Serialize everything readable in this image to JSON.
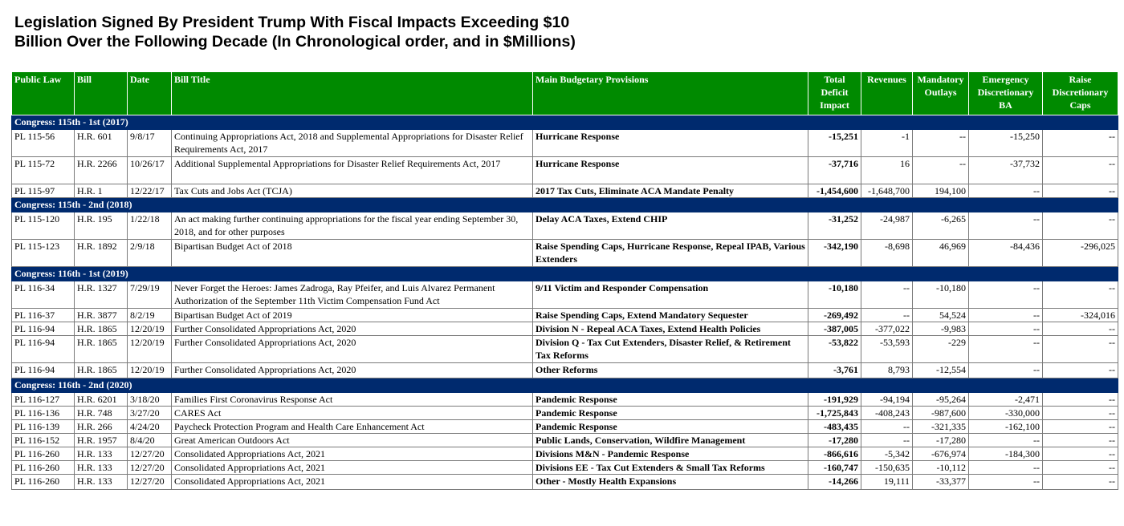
{
  "title": {
    "line1": "Legislation Signed By President Trump With Fiscal Impacts Exceeding $10",
    "line2": "Billion Over the Following Decade (In Chronological order, and in $Millions)"
  },
  "headers": {
    "public_law": "Public Law",
    "bill": "Bill",
    "date": "Date",
    "bill_title": "Bill Title",
    "provisions": "Main Budgetary Provisions",
    "total": "Total Deficit Impact",
    "revenues": "Revenues",
    "mandatory": "Mandatory Outlays",
    "emergency": "Emergency Discretionary BA",
    "raise": "Raise Discretionary Caps"
  },
  "groups": [
    {
      "congress": "Congress: 115th - 1st (2017)",
      "rows": [
        {
          "law": "PL 115-56",
          "bill": "H.R. 601",
          "date": "9/8/17",
          "title": "Continuing Appropriations Act, 2018 and Supplemental Appropriations for Disaster Relief Requirements Act, 2017",
          "provisions": "Hurricane Response",
          "total": "-15,251",
          "revenues": "-1",
          "mandatory": "--",
          "emergency": "-15,250",
          "raise": "--"
        },
        {
          "law": "PL 115-72",
          "bill": "H.R. 2266",
          "date": "10/26/17",
          "title": "Additional Supplemental Appropriations for Disaster Relief Requirements Act, 2017",
          "provisions": "Hurricane Response",
          "total": "-37,716",
          "revenues": "16",
          "mandatory": "--",
          "emergency": "-37,732",
          "raise": "--"
        },
        {
          "law": "PL 115-97",
          "bill": "H.R. 1",
          "date": "12/22/17",
          "title": "Tax Cuts and Jobs Act (TCJA)",
          "provisions": "2017 Tax Cuts, Eliminate ACA Mandate Penalty",
          "total": "-1,454,600",
          "revenues": "-1,648,700",
          "mandatory": "194,100",
          "emergency": "--",
          "raise": "--"
        }
      ]
    },
    {
      "congress": "Congress: 115th - 2nd (2018)",
      "rows": [
        {
          "law": "PL 115-120",
          "bill": "H.R. 195",
          "date": "1/22/18",
          "title": "An act making further continuing appropriations for the fiscal year ending September 30, 2018, and for other purposes",
          "provisions": "Delay ACA Taxes, Extend CHIP",
          "total": "-31,252",
          "revenues": "-24,987",
          "mandatory": "-6,265",
          "emergency": "--",
          "raise": "--"
        },
        {
          "law": "PL 115-123",
          "bill": "H.R. 1892",
          "date": "2/9/18",
          "title": "Bipartisan Budget Act of 2018",
          "provisions": "Raise Spending Caps, Hurricane Response, Repeal IPAB, Various Extenders",
          "total": "-342,190",
          "revenues": "-8,698",
          "mandatory": "46,969",
          "emergency": "-84,436",
          "raise": "-296,025"
        }
      ]
    },
    {
      "congress": "Congress: 116th - 1st (2019)",
      "rows": [
        {
          "law": "PL 116-34",
          "bill": "H.R. 1327",
          "date": "7/29/19",
          "title": "Never Forget the Heroes: James Zadroga, Ray Pfeifer, and Luis Alvarez Permanent Authorization of the September 11th Victim Compensation Fund Act",
          "provisions": "9/11 Victim and Responder Compensation",
          "total": "-10,180",
          "revenues": "--",
          "mandatory": "-10,180",
          "emergency": "--",
          "raise": "--"
        },
        {
          "law": "PL 116-37",
          "bill": "H.R. 3877",
          "date": "8/2/19",
          "title": "Bipartisan Budget Act of 2019",
          "provisions": "Raise Spending Caps, Extend Mandatory Sequester",
          "total": "-269,492",
          "revenues": "--",
          "mandatory": "54,524",
          "emergency": "--",
          "raise": "-324,016"
        },
        {
          "law": "PL 116-94",
          "bill": "H.R. 1865",
          "date": "12/20/19",
          "title": "Further Consolidated Appropriations Act, 2020",
          "provisions": "Division N - Repeal ACA Taxes, Extend Health Policies",
          "total": "-387,005",
          "revenues": "-377,022",
          "mandatory": "-9,983",
          "emergency": "--",
          "raise": "--"
        },
        {
          "law": "PL 116-94",
          "bill": "H.R. 1865",
          "date": "12/20/19",
          "title": "Further Consolidated Appropriations Act, 2020",
          "provisions": "Division Q - Tax Cut Extenders, Disaster Relief, & Retirement Tax Reforms",
          "total": "-53,822",
          "revenues": "-53,593",
          "mandatory": "-229",
          "emergency": "--",
          "raise": "--"
        },
        {
          "law": "PL 116-94",
          "bill": "H.R. 1865",
          "date": "12/20/19",
          "title": "Further Consolidated Appropriations Act, 2020",
          "provisions": "Other Reforms",
          "total": "-3,761",
          "revenues": "8,793",
          "mandatory": "-12,554",
          "emergency": "--",
          "raise": "--"
        }
      ]
    },
    {
      "congress": "Congress: 116th - 2nd (2020)",
      "rows": [
        {
          "law": "PL 116-127",
          "bill": "H.R. 6201",
          "date": "3/18/20",
          "title": "Families First Coronavirus Response Act",
          "provisions": "Pandemic Response",
          "total": "-191,929",
          "revenues": "-94,194",
          "mandatory": "-95,264",
          "emergency": "-2,471",
          "raise": "--"
        },
        {
          "law": "PL 116-136",
          "bill": "H.R. 748",
          "date": "3/27/20",
          "title": "CARES Act",
          "provisions": "Pandemic Response",
          "total": "-1,725,843",
          "revenues": "-408,243",
          "mandatory": "-987,600",
          "emergency": "-330,000",
          "raise": "--"
        },
        {
          "law": "PL 116-139",
          "bill": "H.R. 266",
          "date": "4/24/20",
          "title": "Paycheck Protection Program and Health Care Enhancement Act",
          "provisions": "Pandemic Response",
          "total": "-483,435",
          "revenues": "--",
          "mandatory": "-321,335",
          "emergency": "-162,100",
          "raise": "--"
        },
        {
          "law": "PL 116-152",
          "bill": "H.R. 1957",
          "date": "8/4/20",
          "title": "Great American Outdoors Act",
          "provisions": "Public Lands, Conservation, Wildfire Management",
          "total": "-17,280",
          "revenues": "--",
          "mandatory": "-17,280",
          "emergency": "--",
          "raise": "--"
        },
        {
          "law": "PL 116-260",
          "bill": "H.R. 133",
          "date": "12/27/20",
          "title": "Consolidated Appropriations Act, 2021",
          "provisions": "Divisions M&N - Pandemic Response",
          "total": "-866,616",
          "revenues": "-5,342",
          "mandatory": "-676,974",
          "emergency": "-184,300",
          "raise": "--"
        },
        {
          "law": "PL 116-260",
          "bill": "H.R. 133",
          "date": "12/27/20",
          "title": "Consolidated Appropriations Act, 2021",
          "provisions": "Divisions EE - Tax Cut Extenders & Small Tax Reforms",
          "total": "-160,747",
          "revenues": "-150,635",
          "mandatory": "-10,112",
          "emergency": "--",
          "raise": "--"
        },
        {
          "law": "PL 116-260",
          "bill": "H.R. 133",
          "date": "12/27/20",
          "title": "Consolidated Appropriations Act, 2021",
          "provisions": "Other - Mostly Health Expansions",
          "total": "-14,266",
          "revenues": "19,111",
          "mandatory": "-33,377",
          "emergency": "--",
          "raise": "--"
        }
      ]
    }
  ]
}
